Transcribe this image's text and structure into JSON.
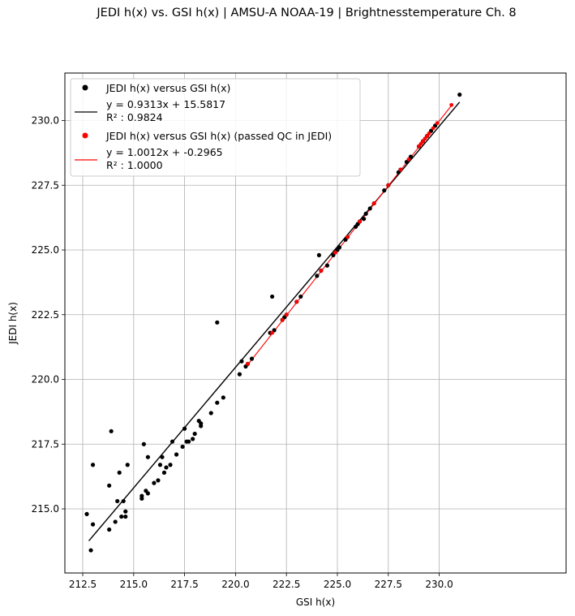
{
  "title": "JEDI h(x) vs. GSI h(x) | AMSU-A NOAA-19 | Brightnesstemperature Ch. 8",
  "chart_data": {
    "type": "scatter",
    "title": "JEDI h(x) vs. GSI h(x) | AMSU-A NOAA-19 | Brightnesstemperature Ch. 8",
    "xlabel": "GSI h(x)",
    "ylabel": "JEDI h(x)",
    "xlim": [
      212.0,
      232.0
    ],
    "ylim": [
      213.0,
      232.0
    ],
    "xticks": [
      "212.5",
      "215.0",
      "217.5",
      "220.0",
      "222.5",
      "225.0",
      "227.5",
      "230.0"
    ],
    "yticks": [
      "215.0",
      "217.5",
      "220.0",
      "222.5",
      "225.0",
      "227.5",
      "230.0"
    ],
    "grid": true,
    "legend_position": "top-left",
    "series": [
      {
        "name": "JEDI h(x) versus GSI h(x)",
        "color": "#000000",
        "fit_label": "y = 0.9313x + 15.5817",
        "r2_label": "R² : 0.9824",
        "fit": {
          "slope": 0.9313,
          "intercept": 15.5817,
          "x_range": [
            212.8,
            231.0
          ]
        },
        "points": [
          [
            212.7,
            214.8
          ],
          [
            212.9,
            213.4
          ],
          [
            213.0,
            214.4
          ],
          [
            213.0,
            216.7
          ],
          [
            213.8,
            214.2
          ],
          [
            213.8,
            215.9
          ],
          [
            213.9,
            218.0
          ],
          [
            214.1,
            214.5
          ],
          [
            214.2,
            215.3
          ],
          [
            214.3,
            216.4
          ],
          [
            214.4,
            214.7
          ],
          [
            214.5,
            215.3
          ],
          [
            214.6,
            214.9
          ],
          [
            214.6,
            214.7
          ],
          [
            214.7,
            216.7
          ],
          [
            215.4,
            215.5
          ],
          [
            215.4,
            215.4
          ],
          [
            215.5,
            217.5
          ],
          [
            215.6,
            215.7
          ],
          [
            215.7,
            215.6
          ],
          [
            215.7,
            217.0
          ],
          [
            216.0,
            216.0
          ],
          [
            216.2,
            216.1
          ],
          [
            216.3,
            216.7
          ],
          [
            216.4,
            217.0
          ],
          [
            216.5,
            216.4
          ],
          [
            216.6,
            216.6
          ],
          [
            216.8,
            216.7
          ],
          [
            216.9,
            217.6
          ],
          [
            217.1,
            217.1
          ],
          [
            217.4,
            217.4
          ],
          [
            217.5,
            218.1
          ],
          [
            217.6,
            217.6
          ],
          [
            217.7,
            217.6
          ],
          [
            217.9,
            217.7
          ],
          [
            218.0,
            217.9
          ],
          [
            218.2,
            218.4
          ],
          [
            218.3,
            218.3
          ],
          [
            218.3,
            218.2
          ],
          [
            218.8,
            218.7
          ],
          [
            219.1,
            219.1
          ],
          [
            219.1,
            222.2
          ],
          [
            219.4,
            219.3
          ],
          [
            220.2,
            220.2
          ],
          [
            220.3,
            220.7
          ],
          [
            220.5,
            220.5
          ],
          [
            220.6,
            220.6
          ],
          [
            220.8,
            220.8
          ],
          [
            221.7,
            221.8
          ],
          [
            221.8,
            223.2
          ],
          [
            221.9,
            221.9
          ],
          [
            222.3,
            222.3
          ],
          [
            222.4,
            222.4
          ],
          [
            222.5,
            222.5
          ],
          [
            223.0,
            223.0
          ],
          [
            223.2,
            223.2
          ],
          [
            224.0,
            224.0
          ],
          [
            224.1,
            224.8
          ],
          [
            224.2,
            224.2
          ],
          [
            224.5,
            224.4
          ],
          [
            224.8,
            224.8
          ],
          [
            225.0,
            225.0
          ],
          [
            225.1,
            225.1
          ],
          [
            225.4,
            225.4
          ],
          [
            225.5,
            225.5
          ],
          [
            225.9,
            225.9
          ],
          [
            226.0,
            226.0
          ],
          [
            226.1,
            226.1
          ],
          [
            226.3,
            226.2
          ],
          [
            226.4,
            226.4
          ],
          [
            226.6,
            226.6
          ],
          [
            226.8,
            226.8
          ],
          [
            227.3,
            227.3
          ],
          [
            227.5,
            227.5
          ],
          [
            228.0,
            228.0
          ],
          [
            228.1,
            228.1
          ],
          [
            228.4,
            228.4
          ],
          [
            228.6,
            228.6
          ],
          [
            229.0,
            229.0
          ],
          [
            229.2,
            229.2
          ],
          [
            229.4,
            229.4
          ],
          [
            229.6,
            229.6
          ],
          [
            229.8,
            229.8
          ],
          [
            231.0,
            231.0
          ]
        ]
      },
      {
        "name": "JEDI h(x) versus GSI h(x) (passed QC in JEDI)",
        "color": "#ff0000",
        "fit_label": "y = 1.0012x + -0.2965",
        "r2_label": "R² : 1.0000",
        "fit": {
          "slope": 1.0012,
          "intercept": -0.2965,
          "x_range": [
            220.6,
            230.6
          ]
        },
        "points": [
          [
            220.6,
            220.6
          ],
          [
            221.8,
            221.8
          ],
          [
            222.3,
            222.3
          ],
          [
            222.5,
            222.5
          ],
          [
            223.0,
            223.0
          ],
          [
            224.2,
            224.2
          ],
          [
            224.9,
            224.9
          ],
          [
            225.5,
            225.5
          ],
          [
            226.1,
            226.1
          ],
          [
            226.8,
            226.8
          ],
          [
            227.5,
            227.5
          ],
          [
            228.1,
            228.1
          ],
          [
            228.5,
            228.5
          ],
          [
            229.0,
            229.0
          ],
          [
            229.1,
            229.1
          ],
          [
            229.2,
            229.2
          ],
          [
            229.3,
            229.3
          ],
          [
            229.4,
            229.4
          ],
          [
            229.5,
            229.5
          ],
          [
            229.7,
            229.7
          ],
          [
            229.9,
            229.9
          ],
          [
            230.6,
            230.6
          ]
        ]
      }
    ]
  }
}
